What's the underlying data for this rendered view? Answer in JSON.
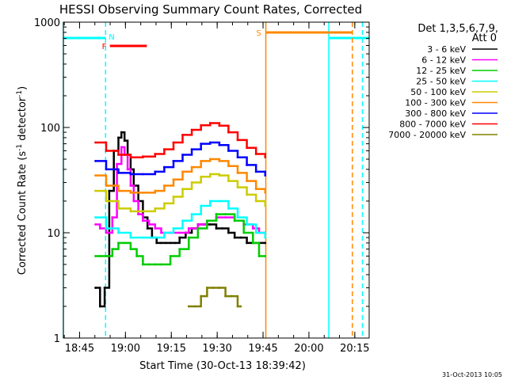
{
  "chart_data": {
    "type": "line",
    "title": "HESSI Observing Summary Count Rates, Corrected",
    "xlabel": "Start Time (30-Oct-13 18:39:42)",
    "ylabel_main": "Corrected Count Rate (s",
    "ylabel_exp1": "-1",
    "ylabel_mid": " detector",
    "ylabel_exp2": "-1",
    "ylabel_end": ")",
    "yscale": "log",
    "ylim": [
      1,
      1000
    ],
    "xlim": [
      0,
      100
    ],
    "x_unit": "minutes after 18:39:42",
    "x_ticks": [
      {
        "t": 5.3,
        "label": "18:45"
      },
      {
        "t": 20.3,
        "label": "19:00"
      },
      {
        "t": 35.3,
        "label": "19:15"
      },
      {
        "t": 50.3,
        "label": "19:30"
      },
      {
        "t": 65.3,
        "label": "19:45"
      },
      {
        "t": 80.3,
        "label": "20:00"
      },
      {
        "t": 95.3,
        "label": "20:15"
      }
    ],
    "y_ticks": [
      {
        "v": 1,
        "label": "1"
      },
      {
        "v": 10,
        "label": "10"
      },
      {
        "v": 100,
        "label": "100"
      },
      {
        "v": 1000,
        "label": "1000"
      }
    ],
    "legend_header": [
      "Det 1,3,5,6,7,9,",
      "Att 0"
    ],
    "series": [
      {
        "name": "3 - 6 keV",
        "color": "#000000",
        "t": [
          10.5,
          12,
          13.5,
          15,
          16.5,
          18,
          19,
          20,
          21,
          22,
          23,
          24.5,
          26,
          27.5,
          29,
          30.5,
          32,
          33.5,
          35,
          36.5,
          38,
          40,
          42,
          44,
          46,
          48,
          50,
          52,
          54,
          56,
          58,
          60,
          62,
          64,
          66
        ],
        "v": [
          3,
          2,
          3,
          25,
          60,
          80,
          90,
          75,
          55,
          40,
          28,
          20,
          14,
          11,
          9,
          8,
          8,
          8,
          8,
          8,
          9,
          10,
          11,
          12,
          12,
          12,
          11,
          11,
          10,
          9,
          9,
          8,
          8,
          8,
          8
        ]
      },
      {
        "name": "6 - 12 keV",
        "color": "#ff00ff",
        "t": [
          10.5,
          12,
          14,
          16,
          17.5,
          19,
          20,
          21,
          22,
          23,
          24.5,
          26,
          28,
          30,
          32,
          35,
          38,
          41,
          44,
          47,
          50,
          53,
          56,
          59,
          62,
          64,
          66
        ],
        "v": [
          12,
          11,
          10,
          14,
          45,
          65,
          55,
          40,
          28,
          20,
          15,
          13,
          12,
          11,
          10,
          10,
          10,
          11,
          12,
          13,
          14,
          14,
          13,
          12,
          11,
          10,
          10
        ]
      },
      {
        "name": "12 - 25 keV",
        "color": "#00cc00",
        "t": [
          10.5,
          12,
          14,
          16,
          18,
          20,
          22,
          24,
          26,
          28,
          30,
          32,
          35,
          38,
          41,
          44,
          47,
          50,
          53,
          56,
          59,
          62,
          64,
          66
        ],
        "v": [
          6,
          6,
          6,
          7,
          8,
          8,
          7,
          6,
          5,
          5,
          5,
          5,
          6,
          7,
          9,
          11,
          13,
          15,
          15,
          13,
          10,
          8,
          6,
          6
        ]
      },
      {
        "name": "25 - 50 keV",
        "color": "#00ffff",
        "t": [
          10.5,
          14,
          18,
          22,
          26,
          30,
          33,
          36,
          39,
          42,
          45,
          48,
          51,
          54,
          57,
          60,
          63,
          66
        ],
        "v": [
          14,
          11,
          10,
          9,
          9,
          9,
          10,
          11,
          13,
          15,
          18,
          20,
          20,
          17,
          14,
          12,
          10,
          9
        ]
      },
      {
        "name": "50 - 100 keV",
        "color": "#cccc00",
        "t": [
          10.5,
          14,
          18,
          22,
          26,
          30,
          33,
          36,
          39,
          42,
          45,
          48,
          51,
          54,
          57,
          60,
          63,
          66
        ],
        "v": [
          25,
          20,
          17,
          16,
          16,
          17,
          19,
          22,
          26,
          30,
          34,
          36,
          35,
          31,
          27,
          23,
          20,
          18
        ]
      },
      {
        "name": "100 - 300 keV",
        "color": "#ff8800",
        "t": [
          10.5,
          14,
          18,
          22,
          26,
          30,
          33,
          36,
          39,
          42,
          45,
          48,
          51,
          54,
          57,
          60,
          63,
          66
        ],
        "v": [
          35,
          28,
          25,
          24,
          24,
          25,
          28,
          32,
          38,
          42,
          48,
          50,
          48,
          43,
          37,
          31,
          26,
          24
        ]
      },
      {
        "name": "300 - 800 keV",
        "color": "#0000ff",
        "t": [
          10.5,
          14,
          18,
          22,
          26,
          30,
          33,
          36,
          39,
          42,
          45,
          48,
          51,
          54,
          57,
          60,
          63,
          66
        ],
        "v": [
          48,
          40,
          37,
          36,
          36,
          38,
          42,
          48,
          55,
          62,
          70,
          72,
          68,
          60,
          52,
          44,
          38,
          35
        ]
      },
      {
        "name": "800 - 7000 keV",
        "color": "#ff0000",
        "t": [
          10.5,
          14,
          18,
          22,
          26,
          30,
          33,
          36,
          39,
          42,
          45,
          48,
          51,
          54,
          57,
          60,
          63,
          66
        ],
        "v": [
          72,
          60,
          55,
          52,
          53,
          56,
          62,
          72,
          85,
          95,
          105,
          110,
          104,
          90,
          76,
          64,
          56,
          52
        ]
      },
      {
        "name": "7000 - 20000 keV",
        "color": "#808000",
        "t": [
          41,
          43,
          45,
          47,
          49,
          51,
          53,
          55,
          57,
          58
        ],
        "v": [
          2,
          2,
          2.5,
          3,
          3,
          3,
          2.5,
          2.5,
          2,
          2
        ]
      }
    ],
    "annotations": {
      "cyan_bars": [
        [
          0,
          13.8
        ],
        [
          86.8,
          100
        ]
      ],
      "cyan_solid_lines": [
        0,
        86.8
      ],
      "cyan_dashed_lines": [
        13.8,
        97.8
      ],
      "orange_bar": [
        66.2,
        94.5
      ],
      "orange_solid_line": 66.2,
      "orange_dashed_line": 94.5,
      "red_bar": [
        15.2,
        27.3
      ],
      "N_label": "N",
      "F_label": "F",
      "S_label": "S"
    }
  },
  "footer": {
    "timestamp": "31-Oct-2013 10:05"
  }
}
